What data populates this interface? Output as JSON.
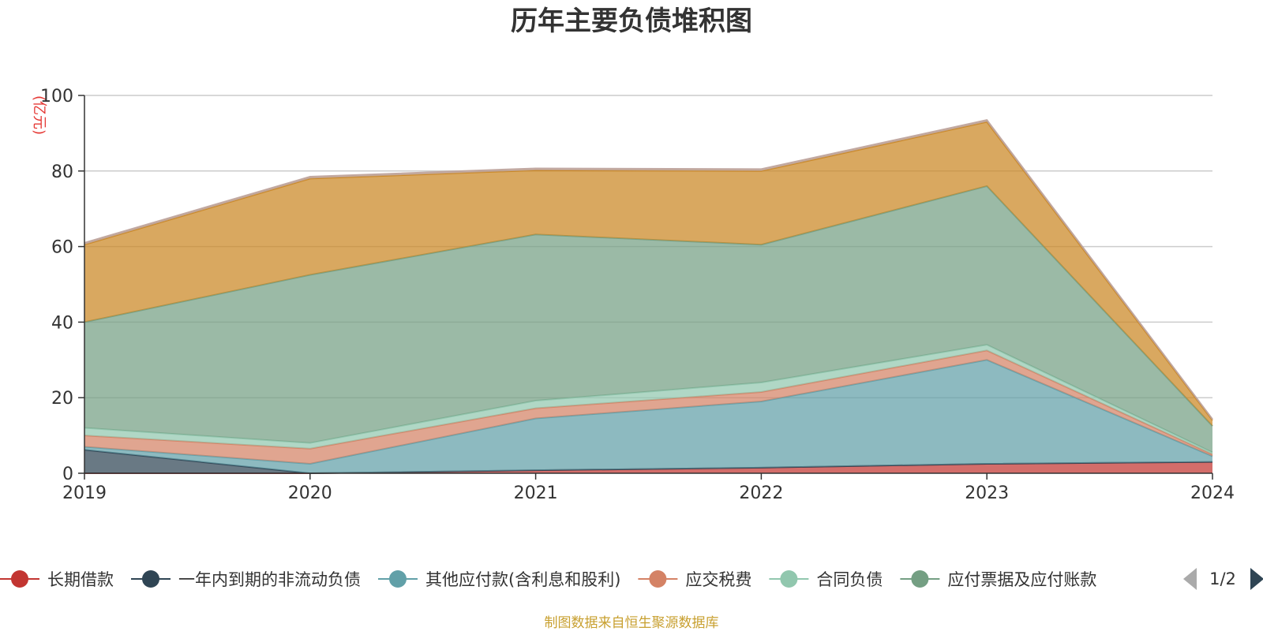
{
  "chart_data": {
    "type": "area",
    "stacked": true,
    "title": "历年主要负债堆积图",
    "unit_label": "(亿元)",
    "x": [
      "2019",
      "2020",
      "2021",
      "2022",
      "2023",
      "2024"
    ],
    "ylim": [
      0,
      100
    ],
    "yticks": [
      0,
      20,
      40,
      60,
      80,
      100
    ],
    "grid": true,
    "legend_position": "bottom",
    "series": [
      {
        "name": "长期借款",
        "color": "#c23531",
        "values": [
          0,
          0,
          0.8,
          1.5,
          2.5,
          3
        ]
      },
      {
        "name": "一年内到期的非流动负债",
        "color": "#2f4554",
        "values": [
          6.2,
          0,
          0,
          0,
          0,
          0
        ]
      },
      {
        "name": "其他应付款(含利息和股利)",
        "color": "#61a0a8",
        "values": [
          0.8,
          2.5,
          13.7,
          17.5,
          27.5,
          1.5
        ]
      },
      {
        "name": "应交税费",
        "color": "#d48265",
        "values": [
          3,
          4,
          2.7,
          2.5,
          2.5,
          0.5
        ]
      },
      {
        "name": "合同负债",
        "color": "#91c7ae",
        "values": [
          2,
          1.5,
          2,
          2.5,
          1.5,
          0.5
        ]
      },
      {
        "name": "应付票据及应付账款",
        "color": "#749f83",
        "values": [
          28,
          44.5,
          44,
          36.5,
          42,
          7
        ]
      },
      {
        "name": "",
        "color": "#ca8622",
        "values": [
          20.5,
          25.5,
          17,
          19.5,
          17,
          1.5
        ]
      },
      {
        "name": "",
        "color": "#bda29a",
        "values": [
          0.5,
          0.5,
          0.5,
          0.5,
          0.5,
          0.3
        ]
      }
    ]
  },
  "legend": {
    "page_indicator": "1/2",
    "visible_labels": [
      "长期借款",
      "一年内到期的非流动负债",
      "其他应付款(含利息和股利)",
      "应交税费",
      "合同负债",
      "应付票据及应付账款"
    ]
  },
  "footer": {
    "source": "制图数据来自恒生聚源数据库"
  }
}
